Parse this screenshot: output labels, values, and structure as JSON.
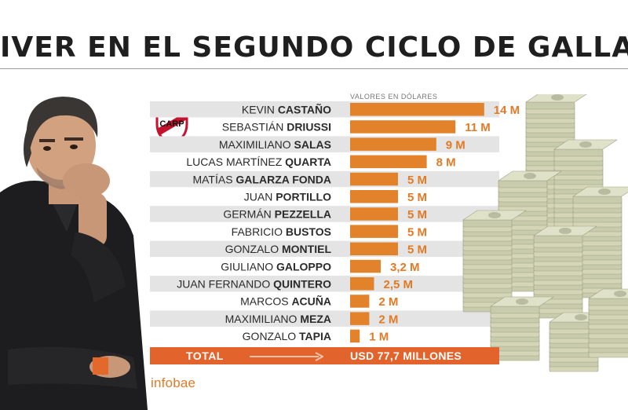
{
  "title": "IVER EN EL SEGUNDO CICLO DE GALLARDO",
  "subtitle": "VALORES EN DÓLARES",
  "total": {
    "label": "TOTAL",
    "value": "USD 77,7 MILLONES"
  },
  "brand": "infobae",
  "colors": {
    "bar": "#e2832c",
    "row_band": "#e4e4e4",
    "total_bar": "#e2642c",
    "value_text": "#e27a26"
  },
  "icons": {
    "crest": "river-plate-crest-icon",
    "arrow": "arrow-right-icon"
  },
  "chart_data": {
    "type": "bar",
    "orientation": "horizontal",
    "unit": "M USD",
    "categories": [
      {
        "first": "KEVIN",
        "last": "CASTAÑO"
      },
      {
        "first": "SEBASTIÁN",
        "last": "DRIUSSI"
      },
      {
        "first": "MAXIMILIANO",
        "last": "SALAS"
      },
      {
        "first": "LUCAS MARTÍNEZ",
        "last": "QUARTA"
      },
      {
        "first": "MATÍAS",
        "last": "GALARZA FONDA"
      },
      {
        "first": "JUAN",
        "last": "PORTILLO"
      },
      {
        "first": "GERMÁN",
        "last": "PEZZELLA"
      },
      {
        "first": "FABRICIO",
        "last": "BUSTOS"
      },
      {
        "first": "GONZALO",
        "last": "MONTIEL"
      },
      {
        "first": "GIULIANO",
        "last": "GALOPPO"
      },
      {
        "first": "JUAN FERNANDO",
        "last": "QUINTERO"
      },
      {
        "first": "MARCOS",
        "last": "ACUÑA"
      },
      {
        "first": "MAXIMILIANO",
        "last": "MEZA"
      },
      {
        "first": "GONZALO",
        "last": "TAPIA"
      }
    ],
    "values": [
      14,
      11,
      9,
      8,
      5,
      5,
      5,
      5,
      5,
      3.2,
      2.5,
      2,
      2,
      1
    ],
    "value_labels": [
      "14 M",
      "11 M",
      "9 M",
      "8 M",
      "5 M",
      "5 M",
      "5 M",
      "5 M",
      "5 M",
      "3,2 M",
      "2,5 M",
      "2 M",
      "2 M",
      "1 M"
    ]
  }
}
